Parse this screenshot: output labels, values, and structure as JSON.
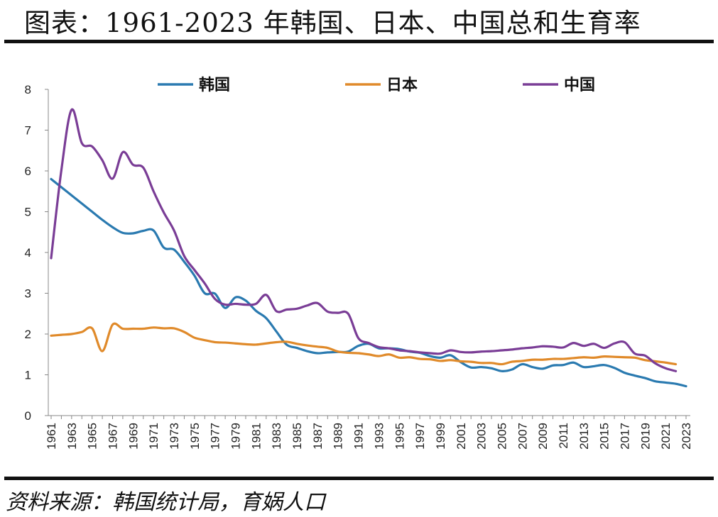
{
  "title": "图表：1961-2023 年韩国、日本、中国总和生育率",
  "source": "资料来源：韩国统计局，育娲人口",
  "chart_data": {
    "type": "line",
    "x_start": 1961,
    "x_end": 2023,
    "ylim": [
      0,
      8
    ],
    "y_ticks": [
      0,
      1,
      2,
      3,
      4,
      5,
      6,
      7,
      8
    ],
    "x_tick_labels": [
      "1961",
      "1963",
      "1965",
      "1967",
      "1969",
      "1971",
      "1973",
      "1975",
      "1977",
      "1979",
      "1981",
      "1983",
      "1985",
      "1987",
      "1989",
      "1991",
      "1993",
      "1995",
      "1997",
      "1999",
      "2001",
      "2003",
      "2005",
      "2007",
      "2009",
      "2011",
      "2013",
      "2015",
      "2017",
      "2019",
      "2021",
      "2023"
    ],
    "legend_position": "top",
    "series": [
      {
        "name": "韩国",
        "color": "#2A7AB0",
        "x": [
          1961,
          1962,
          1963,
          1964,
          1965,
          1966,
          1967,
          1968,
          1969,
          1970,
          1971,
          1972,
          1973,
          1974,
          1975,
          1976,
          1977,
          1978,
          1979,
          1980,
          1981,
          1982,
          1983,
          1984,
          1985,
          1986,
          1987,
          1988,
          1989,
          1990,
          1991,
          1992,
          1993,
          1994,
          1995,
          1996,
          1997,
          1998,
          1999,
          2000,
          2001,
          2002,
          2003,
          2004,
          2005,
          2006,
          2007,
          2008,
          2009,
          2010,
          2011,
          2012,
          2013,
          2014,
          2015,
          2016,
          2017,
          2018,
          2019,
          2020,
          2021,
          2022,
          2023
        ],
        "values": [
          5.8,
          5.6,
          5.4,
          5.2,
          5.0,
          4.8,
          4.62,
          4.48,
          4.47,
          4.53,
          4.54,
          4.12,
          4.07,
          3.77,
          3.43,
          3.0,
          2.99,
          2.64,
          2.9,
          2.82,
          2.57,
          2.39,
          2.06,
          1.74,
          1.66,
          1.58,
          1.53,
          1.55,
          1.56,
          1.57,
          1.71,
          1.76,
          1.65,
          1.65,
          1.63,
          1.57,
          1.54,
          1.46,
          1.42,
          1.48,
          1.31,
          1.18,
          1.19,
          1.16,
          1.09,
          1.13,
          1.26,
          1.19,
          1.15,
          1.23,
          1.24,
          1.3,
          1.19,
          1.21,
          1.24,
          1.17,
          1.05,
          0.98,
          0.92,
          0.84,
          0.81,
          0.78,
          0.72
        ]
      },
      {
        "name": "日本",
        "color": "#E08A2A",
        "x": [
          1961,
          1962,
          1963,
          1964,
          1965,
          1966,
          1967,
          1968,
          1969,
          1970,
          1971,
          1972,
          1973,
          1974,
          1975,
          1976,
          1977,
          1978,
          1979,
          1980,
          1981,
          1982,
          1983,
          1984,
          1985,
          1986,
          1987,
          1988,
          1989,
          1990,
          1991,
          1992,
          1993,
          1994,
          1995,
          1996,
          1997,
          1998,
          1999,
          2000,
          2001,
          2002,
          2003,
          2004,
          2005,
          2006,
          2007,
          2008,
          2009,
          2010,
          2011,
          2012,
          2013,
          2014,
          2015,
          2016,
          2017,
          2018,
          2019,
          2020,
          2021,
          2022
        ],
        "values": [
          1.96,
          1.98,
          2.0,
          2.05,
          2.14,
          1.58,
          2.23,
          2.13,
          2.13,
          2.13,
          2.16,
          2.14,
          2.14,
          2.05,
          1.91,
          1.85,
          1.8,
          1.79,
          1.77,
          1.75,
          1.74,
          1.77,
          1.8,
          1.81,
          1.76,
          1.72,
          1.69,
          1.66,
          1.57,
          1.54,
          1.53,
          1.5,
          1.46,
          1.5,
          1.42,
          1.43,
          1.39,
          1.38,
          1.34,
          1.36,
          1.33,
          1.32,
          1.29,
          1.29,
          1.26,
          1.32,
          1.34,
          1.37,
          1.37,
          1.39,
          1.39,
          1.41,
          1.43,
          1.42,
          1.45,
          1.44,
          1.43,
          1.42,
          1.36,
          1.33,
          1.3,
          1.26
        ]
      },
      {
        "name": "中国",
        "color": "#7A3D96",
        "x": [
          1961,
          1962,
          1963,
          1964,
          1965,
          1966,
          1967,
          1968,
          1969,
          1970,
          1971,
          1972,
          1973,
          1974,
          1975,
          1976,
          1977,
          1978,
          1979,
          1980,
          1981,
          1982,
          1983,
          1984,
          1985,
          1986,
          1987,
          1988,
          1989,
          1990,
          1991,
          1992,
          1993,
          1994,
          1995,
          1996,
          1997,
          1998,
          1999,
          2000,
          2001,
          2002,
          2003,
          2004,
          2005,
          2006,
          2007,
          2008,
          2009,
          2010,
          2011,
          2012,
          2013,
          2014,
          2015,
          2016,
          2017,
          2018,
          2019,
          2020,
          2021,
          2022
        ],
        "values": [
          3.86,
          6.02,
          7.5,
          6.68,
          6.6,
          6.26,
          5.81,
          6.46,
          6.15,
          6.08,
          5.5,
          4.98,
          4.54,
          3.91,
          3.57,
          3.24,
          2.86,
          2.72,
          2.74,
          2.72,
          2.74,
          2.96,
          2.56,
          2.6,
          2.62,
          2.7,
          2.76,
          2.55,
          2.52,
          2.5,
          1.9,
          1.78,
          1.68,
          1.65,
          1.6,
          1.58,
          1.55,
          1.53,
          1.52,
          1.6,
          1.56,
          1.55,
          1.57,
          1.58,
          1.6,
          1.62,
          1.65,
          1.67,
          1.7,
          1.69,
          1.67,
          1.78,
          1.71,
          1.76,
          1.66,
          1.77,
          1.8,
          1.52,
          1.47,
          1.28,
          1.16,
          1.09
        ]
      }
    ]
  }
}
